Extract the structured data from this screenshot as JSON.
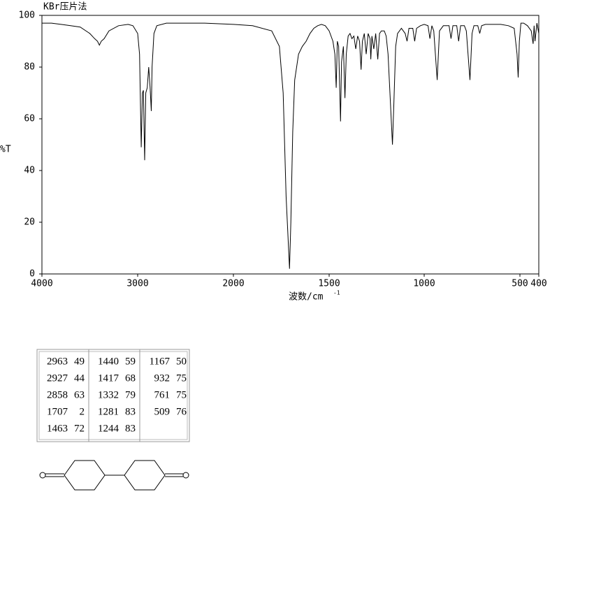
{
  "chart_data": {
    "type": "line",
    "title": "KBr压片法",
    "xlabel": "波数/cm",
    "xlabel_sup": "-1",
    "ylabel": "%T",
    "x": [
      4000,
      3900,
      3800,
      3700,
      3600,
      3500,
      3450,
      3420,
      3400,
      3380,
      3350,
      3300,
      3200,
      3100,
      3050,
      3000,
      2980,
      2963,
      2950,
      2940,
      2927,
      2915,
      2900,
      2885,
      2870,
      2858,
      2850,
      2830,
      2800,
      2700,
      2500,
      2300,
      2000,
      1900,
      1800,
      1760,
      1740,
      1725,
      1707,
      1700,
      1690,
      1680,
      1660,
      1640,
      1620,
      1600,
      1580,
      1560,
      1540,
      1520,
      1500,
      1480,
      1470,
      1463,
      1457,
      1450,
      1440,
      1435,
      1425,
      1417,
      1410,
      1400,
      1390,
      1380,
      1370,
      1360,
      1350,
      1340,
      1332,
      1325,
      1315,
      1305,
      1295,
      1285,
      1281,
      1275,
      1265,
      1255,
      1244,
      1235,
      1225,
      1210,
      1200,
      1190,
      1180,
      1167,
      1160,
      1150,
      1140,
      1120,
      1100,
      1090,
      1080,
      1060,
      1050,
      1040,
      1020,
      1000,
      980,
      970,
      960,
      950,
      932,
      920,
      900,
      870,
      860,
      850,
      830,
      820,
      810,
      790,
      780,
      761,
      750,
      740,
      720,
      710,
      700,
      680,
      600,
      560,
      530,
      515,
      509,
      503,
      495,
      480,
      460,
      440,
      430,
      425,
      420,
      410,
      400
    ],
    "values": [
      97,
      97,
      96.5,
      96,
      95.5,
      93,
      91,
      90,
      88.5,
      90,
      91,
      94,
      96,
      96.5,
      96,
      93,
      85,
      49,
      70,
      71,
      44,
      70,
      72,
      80,
      72,
      63,
      80,
      93,
      96,
      97,
      97,
      97,
      96.5,
      96,
      94,
      88,
      70,
      30,
      2,
      20,
      55,
      75,
      85,
      88,
      90,
      93,
      95,
      96,
      96.5,
      96,
      94,
      90,
      85,
      72,
      90,
      88,
      59,
      82,
      88,
      68,
      85,
      92,
      93,
      91,
      92,
      87,
      92,
      90,
      79,
      90,
      93,
      85,
      93,
      91,
      83,
      92,
      87,
      93,
      83,
      93,
      94,
      94,
      92,
      85,
      70,
      50,
      65,
      88,
      93,
      95,
      93,
      90,
      95,
      95,
      90,
      95,
      96,
      96.5,
      96,
      91,
      96,
      94,
      75,
      94,
      96,
      96,
      91,
      96,
      96,
      90,
      96,
      96,
      94,
      75,
      93,
      96,
      96,
      93,
      96,
      96.5,
      96.5,
      96,
      95,
      85,
      76,
      90,
      97,
      97,
      96,
      94,
      89,
      96,
      90,
      97,
      93
    ],
    "color": "#000000",
    "xlim": [
      4000,
      400
    ],
    "ylim": [
      0,
      100
    ],
    "xticks": [
      4000,
      3000,
      2000,
      1500,
      1000,
      500,
      400
    ],
    "yticks": [
      0,
      20,
      40,
      60,
      80,
      100
    ]
  },
  "peak_table": {
    "columns": [
      [
        [
          2963,
          49
        ],
        [
          2927,
          44
        ],
        [
          2858,
          63
        ],
        [
          1707,
          2
        ],
        [
          1463,
          72
        ]
      ],
      [
        [
          1440,
          59
        ],
        [
          1417,
          68
        ],
        [
          1332,
          79
        ],
        [
          1281,
          83
        ],
        [
          1244,
          83
        ]
      ],
      [
        [
          1167,
          50
        ],
        [
          932,
          75
        ],
        [
          761,
          75
        ],
        [
          509,
          76
        ]
      ]
    ]
  }
}
